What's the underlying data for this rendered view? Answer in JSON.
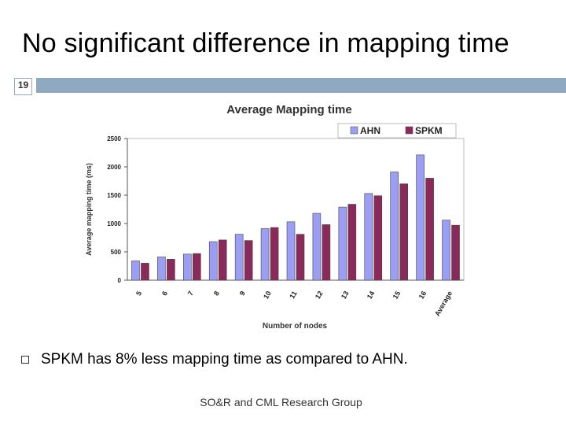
{
  "slide": {
    "title": "No significant difference in mapping time",
    "number": "19",
    "bullet": "SPKM has 8% less mapping time as compared to AHN.",
    "footer": "SO&R and CML Research Group"
  },
  "colors": {
    "header_bar": "#8fa9c1",
    "ahn": "#9c9ef5",
    "spkm": "#8b2a5a"
  },
  "chart_data": {
    "type": "bar",
    "title": "Average Mapping time",
    "xlabel": "Number of nodes",
    "ylabel": "Average mapping time (ms)",
    "ylim": [
      0,
      2500
    ],
    "yticks": [
      0,
      500,
      1000,
      1500,
      2000,
      2500
    ],
    "categories": [
      "5",
      "6",
      "7",
      "8",
      "9",
      "10",
      "11",
      "12",
      "13",
      "14",
      "15",
      "16",
      "Average"
    ],
    "series": [
      {
        "name": "AHN",
        "values": [
          340,
          410,
          460,
          680,
          810,
          910,
          1030,
          1180,
          1290,
          1530,
          1910,
          2210,
          1060
        ]
      },
      {
        "name": "SPKM",
        "values": [
          300,
          370,
          470,
          710,
          700,
          930,
          810,
          980,
          1340,
          1490,
          1700,
          1800,
          970
        ]
      }
    ],
    "legend": "top-right",
    "grid": false
  }
}
